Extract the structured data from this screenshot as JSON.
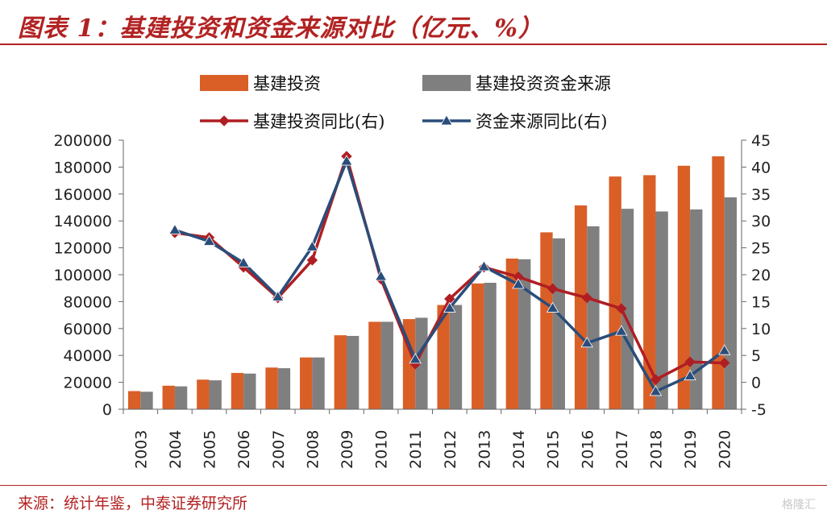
{
  "header": {
    "title": "图表 1：基建投资和资金来源对比（亿元、%）"
  },
  "footer": {
    "source": "来源：统计年鉴，中泰证券研究所",
    "watermark": "格隆汇"
  },
  "chart_data": {
    "type": "bar+line",
    "categories": [
      "2003",
      "2004",
      "2005",
      "2006",
      "2007",
      "2008",
      "2009",
      "2010",
      "2011",
      "2012",
      "2013",
      "2014",
      "2015",
      "2016",
      "2017",
      "2018",
      "2019",
      "2020"
    ],
    "bar_series": [
      {
        "name": "基建投资",
        "color": "#d95f27",
        "values": [
          13500,
          17500,
          22000,
          27000,
          31000,
          38500,
          55000,
          65000,
          67000,
          77500,
          93500,
          112000,
          131500,
          151500,
          173000,
          174000,
          181000,
          188000
        ]
      },
      {
        "name": "基建投资资金来源",
        "color": "#7f7f7f",
        "values": [
          13000,
          17000,
          21500,
          26500,
          30500,
          38500,
          54500,
          65000,
          68000,
          77500,
          94000,
          111500,
          127000,
          136000,
          149000,
          147000,
          148500,
          157500
        ]
      }
    ],
    "line_series": [
      {
        "name": "基建投资同比(右)",
        "color": "#b01e23",
        "marker": "diamond",
        "values": [
          null,
          27.8,
          26.9,
          21.4,
          15.7,
          22.7,
          42.0,
          19.2,
          3.4,
          15.5,
          21.4,
          19.6,
          17.4,
          15.7,
          13.7,
          0.5,
          3.8,
          3.6
        ]
      },
      {
        "name": "资金来源同比(右)",
        "color": "#2a4d7a",
        "marker": "triangle",
        "values": [
          null,
          28.3,
          26.2,
          22.2,
          15.9,
          25.2,
          41.1,
          19.7,
          4.3,
          13.8,
          21.5,
          18.2,
          13.8,
          7.3,
          9.5,
          -1.7,
          1.2,
          5.9
        ]
      }
    ],
    "y_left": {
      "min": 0,
      "max": 200000,
      "step": 20000,
      "ticks": [
        "0",
        "20000",
        "40000",
        "60000",
        "80000",
        "100000",
        "120000",
        "140000",
        "160000",
        "180000",
        "200000"
      ]
    },
    "y_right": {
      "min": -5,
      "max": 45,
      "step": 5,
      "ticks": [
        "-5",
        "0",
        "5",
        "10",
        "15",
        "20",
        "25",
        "30",
        "35",
        "40",
        "45"
      ]
    },
    "legend_placement": "top"
  }
}
